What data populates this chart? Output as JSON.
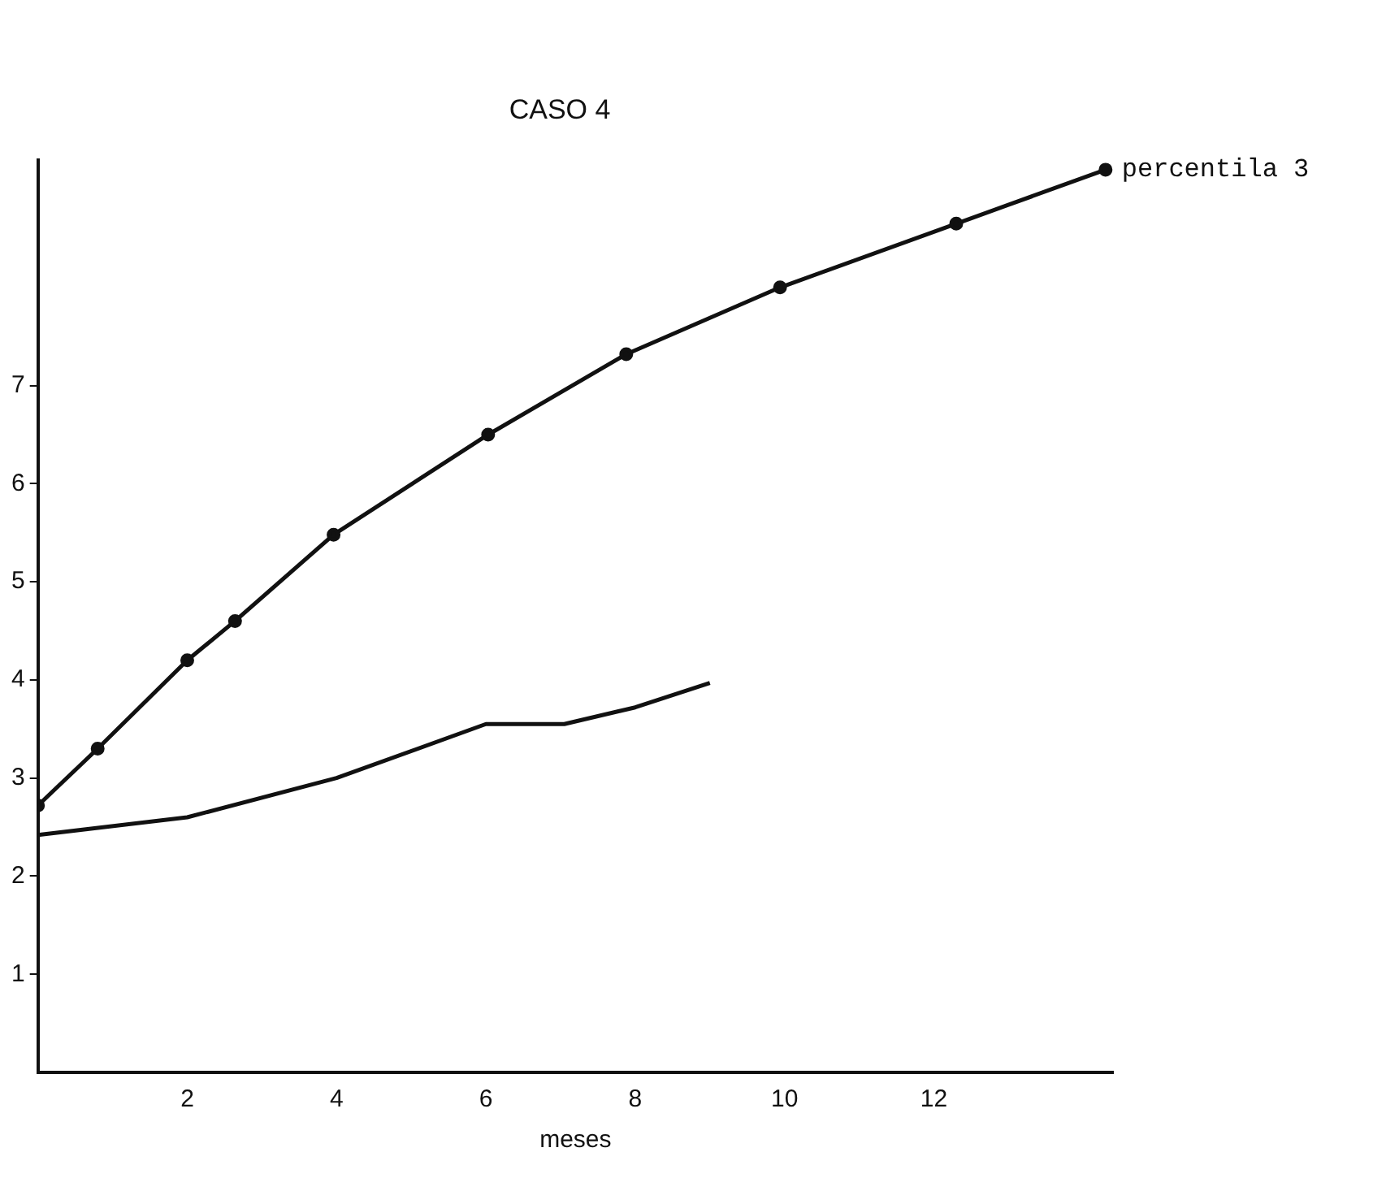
{
  "chart_data": {
    "type": "line",
    "title": "CASO 4",
    "xlabel": "meses",
    "xlim": [
      0,
      14.4
    ],
    "xticks": [
      2,
      4,
      6,
      8,
      10,
      12
    ],
    "ylim": [
      0,
      9.3
    ],
    "yticks": [
      1,
      2,
      3,
      4,
      5,
      6,
      7
    ],
    "grid": false,
    "legend": false,
    "line_style": "solid",
    "series": [
      {
        "name": "percentila 3",
        "color": "#111111",
        "marker": "circle",
        "x": [
          0,
          0.8,
          2.0,
          2.64,
          3.96,
          6.03,
          7.88,
          9.94,
          12.3,
          14.3
        ],
        "values": [
          2.72,
          3.3,
          4.2,
          4.6,
          5.48,
          6.5,
          7.32,
          8.0,
          8.65,
          9.2
        ]
      },
      {
        "color": "#111111",
        "marker": "none",
        "x": [
          0,
          2,
          4,
          6,
          7.05,
          8,
          9
        ],
        "values": [
          2.42,
          2.6,
          3.0,
          3.55,
          3.55,
          3.72,
          3.97
        ]
      }
    ]
  }
}
